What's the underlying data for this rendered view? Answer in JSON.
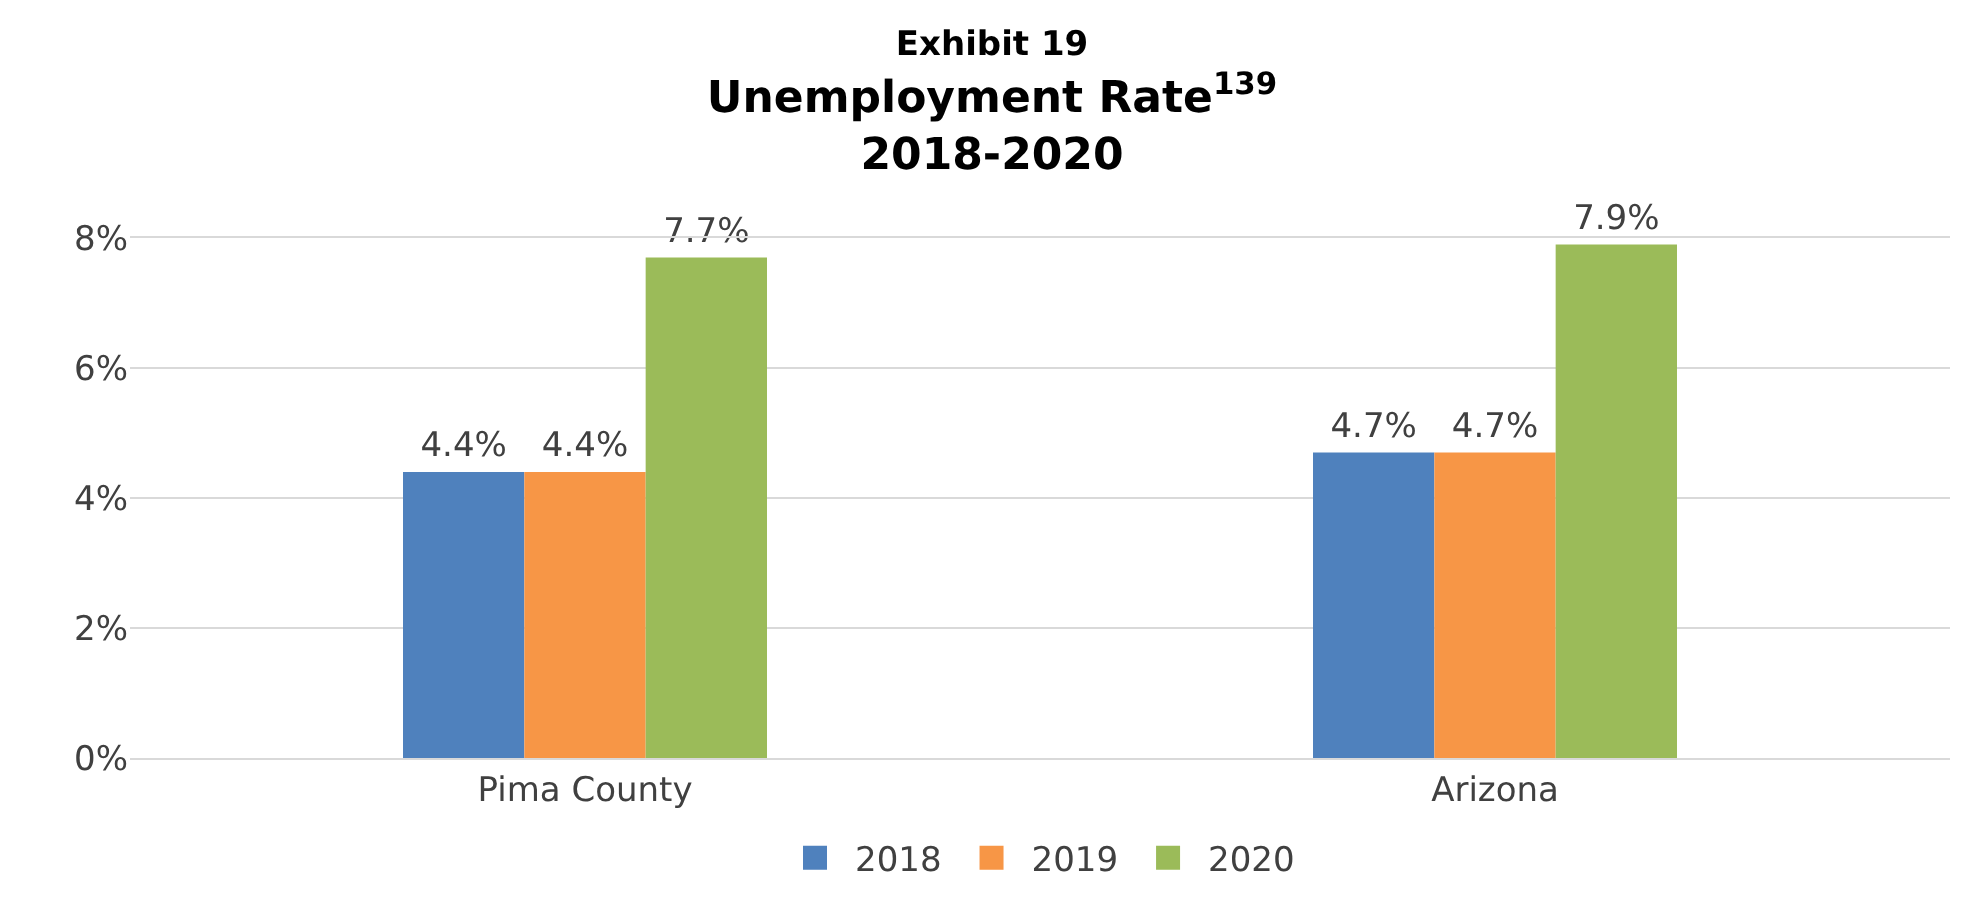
{
  "chart_data": {
    "type": "bar",
    "title": "Exhibit 19\nUnemployment Rate$^{139}$\n2018-2020",
    "categories": [
      "Pima County",
      "Arizona"
    ],
    "series": [
      {
        "name": "2018",
        "color": "#4f81bd",
        "values": [
          4.4,
          4.7
        ],
        "value_labels": [
          "4.4%",
          "4.7%"
        ]
      },
      {
        "name": "2019",
        "color": "#f79646",
        "values": [
          4.4,
          4.7
        ],
        "value_labels": [
          "4.4%",
          "4.7%"
        ]
      },
      {
        "name": "2020",
        "color": "#9bbb59",
        "values": [
          7.7,
          7.9
        ],
        "value_labels": [
          "7.7%",
          "7.9%"
        ]
      }
    ],
    "ylim": [
      0,
      8
    ],
    "yticks": [
      {
        "value": 0,
        "label": "0%"
      },
      {
        "value": 2,
        "label": "2%"
      },
      {
        "value": 4,
        "label": "4%"
      },
      {
        "value": 6,
        "label": "6%"
      },
      {
        "value": 8,
        "label": "8%"
      }
    ],
    "grid": "y",
    "legend": "bottom"
  }
}
